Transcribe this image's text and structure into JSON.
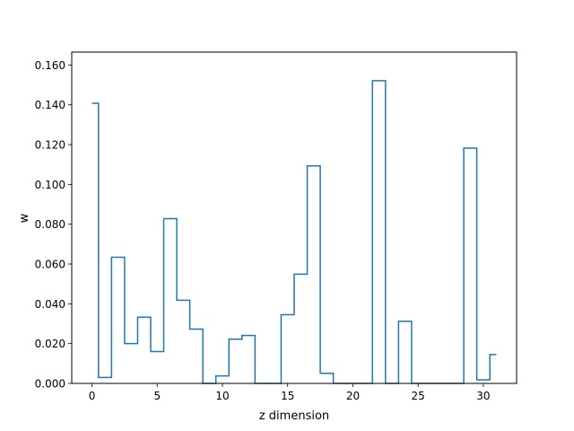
{
  "chart_data": {
    "type": "line",
    "drawstyle": "steps-mid",
    "title": "",
    "xlabel": "z dimension",
    "ylabel": "w",
    "xlim": [
      -1.55,
      32.55
    ],
    "ylim": [
      0.0,
      0.1665
    ],
    "xticks": [
      0,
      5,
      10,
      15,
      20,
      25,
      30
    ],
    "yticks": [
      0.0,
      0.02,
      0.04,
      0.06,
      0.08,
      0.1,
      0.12,
      0.14,
      0.16
    ],
    "ytick_labels": [
      "0.000",
      "0.020",
      "0.040",
      "0.060",
      "0.080",
      "0.100",
      "0.120",
      "0.140",
      "0.160"
    ],
    "grid": false,
    "series": [
      {
        "color": "#1f77b4",
        "x": [
          0,
          1,
          2,
          3,
          4,
          5,
          6,
          7,
          8,
          9,
          10,
          11,
          12,
          13,
          14,
          15,
          16,
          17,
          18,
          19,
          20,
          21,
          22,
          23,
          24,
          25,
          26,
          27,
          28,
          29,
          30,
          31
        ],
        "values": [
          0.1408,
          0.003,
          0.0634,
          0.02,
          0.0333,
          0.016,
          0.0828,
          0.0418,
          0.0273,
          0.0,
          0.0038,
          0.0222,
          0.0241,
          0.0,
          0.0,
          0.0345,
          0.0549,
          0.1093,
          0.0051,
          0.0,
          0.0,
          0.0,
          0.1521,
          0.0,
          0.0312,
          0.0,
          0.0,
          0.0,
          0.0,
          0.1182,
          0.0018,
          0.0145
        ]
      }
    ]
  }
}
